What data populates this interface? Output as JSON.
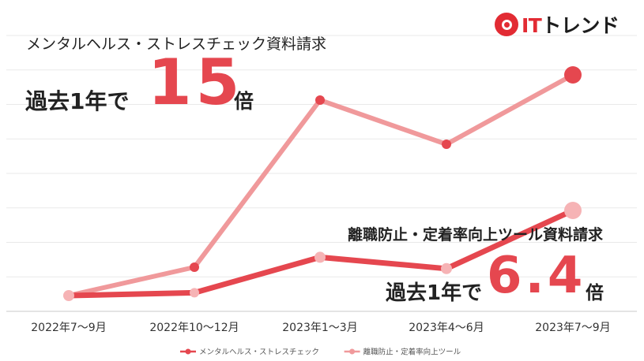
{
  "logo": {
    "prefix": "IT",
    "suffix": "トレンド"
  },
  "callout_primary": {
    "title": "メンタルヘルス・ストレスチェック資料請求",
    "prefix": "過去1年で",
    "value": "15",
    "unit": "倍"
  },
  "callout_secondary": {
    "title": "離職防止・定着率向上ツール資料請求",
    "prefix": "過去1年で",
    "value": "6.4",
    "unit": "倍"
  },
  "chart_data": {
    "type": "line",
    "categories": [
      "2022年7～9月",
      "2022年10～12月",
      "2023年1～3月",
      "2023年4～6月",
      "2023年7～9月"
    ],
    "series": [
      {
        "name": "メンタルヘルス・ストレスチェック",
        "values": [
          1,
          2.8,
          13.4,
          10.6,
          15
        ],
        "color": "#f0999b",
        "marker_color": "#e5474f"
      },
      {
        "name": "離職防止・定着率向上ツール",
        "values": [
          1,
          1.18,
          3.43,
          2.71,
          6.4
        ],
        "color": "#e5474f",
        "marker_color": "#f6b3b5"
      }
    ],
    "ylim": [
      0,
      17.5
    ],
    "grid": true,
    "legend": "bottom-center",
    "colors": {
      "primary": "#e5474f",
      "secondary": "#f0999b",
      "grid": "#e9e9e9",
      "axis": "#c8c8c8"
    }
  }
}
